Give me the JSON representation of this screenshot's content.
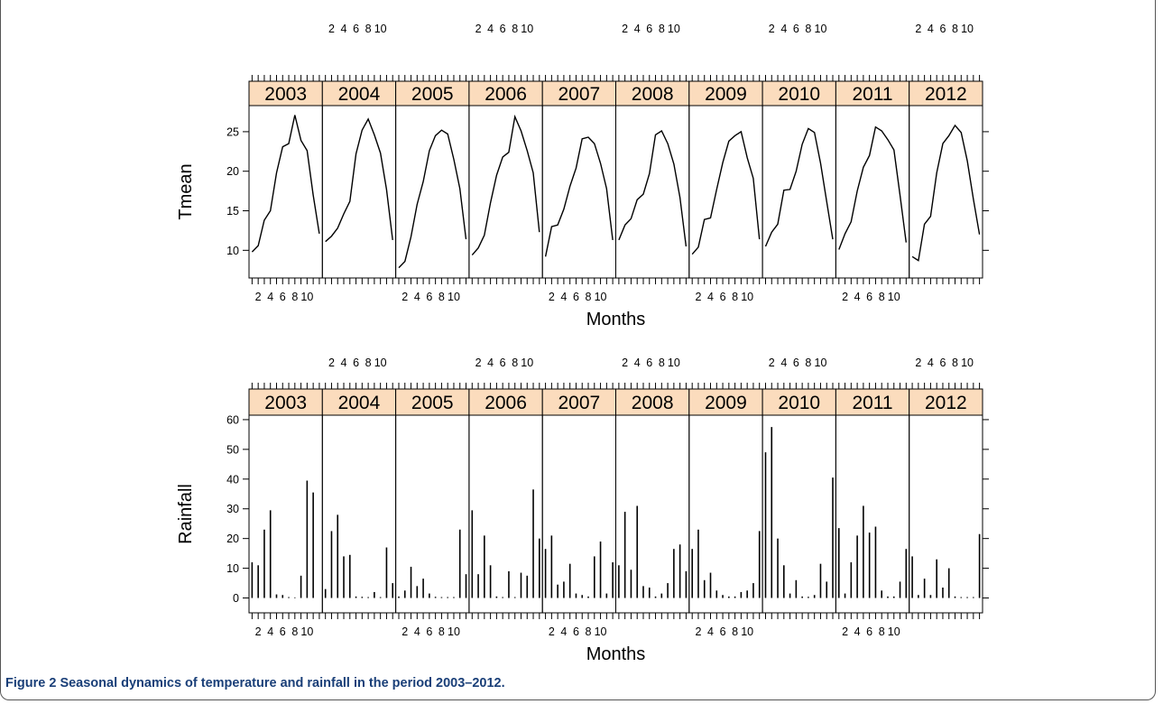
{
  "caption": {
    "label": "Figure 2",
    "text": "Seasonal dynamics of temperature and rainfall in the period 2003–2012."
  },
  "colors": {
    "strip_bg": "#fbdcbd",
    "line": "#000000",
    "caption": "#1a3f78"
  },
  "chart_data": [
    {
      "type": "line",
      "layout": "lattice 10x1 panels by year",
      "ylabel": "Tmean",
      "xlabel": "Months",
      "x_ticks": [
        2,
        4,
        6,
        8,
        10
      ],
      "x_tick_labels": [
        "2",
        "4",
        "6",
        "8",
        "10"
      ],
      "xlim": [
        0.5,
        12.5
      ],
      "ylim": [
        6.5,
        28.3
      ],
      "y_ticks": [
        10,
        15,
        20,
        25
      ],
      "grid": false,
      "panels": [
        {
          "year": "2003",
          "values": [
            9.8,
            10.6,
            13.8,
            15.0,
            19.8,
            23.1,
            23.5,
            27.1,
            23.9,
            22.6,
            17.0,
            12.1
          ]
        },
        {
          "year": "2004",
          "values": [
            11.1,
            11.8,
            12.8,
            14.6,
            16.2,
            22.2,
            25.2,
            26.6,
            24.6,
            22.3,
            17.7,
            11.3
          ]
        },
        {
          "year": "2005",
          "values": [
            7.8,
            8.6,
            11.7,
            15.8,
            18.7,
            22.6,
            24.5,
            25.2,
            24.7,
            21.5,
            17.8,
            11.4
          ]
        },
        {
          "year": "2006",
          "values": [
            9.4,
            10.3,
            11.9,
            16.0,
            19.5,
            21.8,
            22.4,
            26.9,
            25.1,
            22.6,
            19.8,
            12.3
          ]
        },
        {
          "year": "2007",
          "values": [
            9.2,
            13.0,
            13.2,
            15.2,
            18.1,
            20.4,
            24.1,
            24.3,
            23.5,
            21.0,
            17.8,
            11.3
          ]
        },
        {
          "year": "2008",
          "values": [
            11.3,
            13.2,
            14.0,
            16.4,
            17.1,
            19.7,
            24.6,
            25.1,
            23.5,
            20.9,
            16.7,
            10.5
          ]
        },
        {
          "year": "2009",
          "values": [
            9.5,
            10.4,
            13.9,
            14.1,
            17.7,
            21.1,
            23.8,
            24.5,
            25.0,
            21.7,
            19.1,
            11.4
          ]
        },
        {
          "year": "2010",
          "values": [
            10.5,
            12.3,
            13.3,
            17.6,
            17.7,
            20.0,
            23.4,
            25.4,
            24.9,
            21.0,
            16.2,
            11.4
          ]
        },
        {
          "year": "2011",
          "values": [
            10.1,
            12.1,
            13.6,
            17.5,
            20.5,
            22.0,
            25.6,
            25.1,
            24.0,
            22.7,
            17.0,
            11.0
          ]
        },
        {
          "year": "2012",
          "values": [
            9.2,
            8.7,
            13.3,
            14.3,
            19.8,
            23.5,
            24.5,
            25.8,
            24.9,
            21.3,
            16.5,
            12.0
          ]
        }
      ]
    },
    {
      "type": "bar",
      "layout": "lattice 10x1 panels by year",
      "ylabel": "Rainfall",
      "xlabel": "Months",
      "x_ticks": [
        2,
        4,
        6,
        8,
        10
      ],
      "x_tick_labels": [
        "2",
        "4",
        "6",
        "8",
        "10"
      ],
      "xlim": [
        0.5,
        12.5
      ],
      "ylim": [
        -5,
        61.5
      ],
      "y_ticks": [
        0,
        10,
        20,
        30,
        40,
        50,
        60
      ],
      "grid": false,
      "panels": [
        {
          "year": "2003",
          "values": [
            12.0,
            11.0,
            23.0,
            29.5,
            1.2,
            1.0,
            0.3,
            0.2,
            7.5,
            39.5,
            35.5,
            0
          ]
        },
        {
          "year": "2004",
          "values": [
            3.0,
            22.5,
            28.0,
            14.0,
            14.5,
            0.5,
            0.4,
            0.3,
            2.0,
            0.3,
            17.0,
            5.0
          ]
        },
        {
          "year": "2005",
          "values": [
            0.5,
            2.5,
            10.5,
            4.0,
            6.5,
            1.5,
            0.4,
            0.3,
            0.3,
            0.3,
            23.0,
            8.0
          ]
        },
        {
          "year": "2006",
          "values": [
            29.5,
            8.0,
            21.0,
            11.0,
            0.5,
            0.3,
            9.0,
            0.3,
            8.5,
            7.5,
            36.5,
            20.0
          ]
        },
        {
          "year": "2007",
          "values": [
            16.5,
            21.0,
            4.5,
            5.5,
            11.5,
            1.5,
            1.0,
            0.5,
            14.0,
            19.0,
            1.5,
            12.0
          ]
        },
        {
          "year": "2008",
          "values": [
            11.0,
            29.0,
            9.5,
            31.0,
            4.0,
            3.5,
            0.5,
            1.5,
            5.0,
            16.5,
            18.0,
            9.0
          ]
        },
        {
          "year": "2009",
          "values": [
            16.5,
            23.0,
            6.0,
            8.5,
            2.5,
            1.0,
            0.5,
            0.5,
            2.0,
            2.5,
            5.0,
            22.5
          ]
        },
        {
          "year": "2010",
          "values": [
            49.0,
            57.5,
            20.0,
            11.0,
            1.5,
            6.0,
            0.5,
            0.4,
            1.0,
            11.5,
            5.5,
            40.5
          ]
        },
        {
          "year": "2011",
          "values": [
            23.5,
            1.5,
            12.0,
            21.0,
            31.0,
            22.0,
            24.0,
            2.5,
            0.5,
            0.5,
            5.5,
            16.5
          ]
        },
        {
          "year": "2012",
          "values": [
            14.0,
            1.0,
            6.5,
            1.0,
            13.0,
            3.5,
            10.0,
            0.5,
            0.3,
            0.3,
            0.3,
            21.5
          ]
        }
      ]
    }
  ]
}
